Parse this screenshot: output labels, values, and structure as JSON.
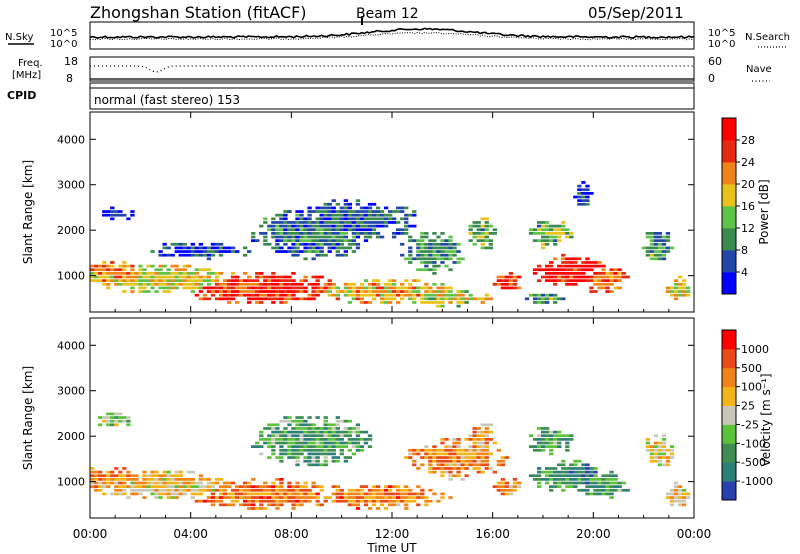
{
  "header": {
    "title": "Zhongshan Station (fitACF)",
    "beam": "Beam 12",
    "date": "05/Sep/2011",
    "cpid_label": "CPID",
    "cpid_text": "normal (fast stereo) 153"
  },
  "top_panels": {
    "nsky_label": "N.Sky",
    "nsearch_label": "N.Search",
    "noise_ticks_left": [
      "10^5",
      "10^0"
    ],
    "noise_ticks_right": [
      "10^5",
      "10^0"
    ],
    "freq_label_1": "Freq.",
    "freq_label_2": "[MHz]",
    "freq_ticks": [
      "18",
      "8"
    ],
    "nave_label": "Nave",
    "nave_ticks": [
      "60",
      "0"
    ]
  },
  "chart_data": [
    {
      "type": "heatmap",
      "name": "power",
      "ylabel": "Slant Range [km]",
      "yticks": [
        "4000",
        "3000",
        "2000",
        "1000"
      ],
      "ylim": [
        200,
        4600
      ],
      "xlim": [
        0,
        24
      ],
      "colorbar_label": "Power [dB]",
      "colorbar_ticks": [
        "28",
        "24",
        "20",
        "16",
        "12",
        "8",
        "4"
      ],
      "colors": [
        "#0000ff",
        "#2347a8",
        "#3a8a4e",
        "#5fc24a",
        "#e9c31c",
        "#f08418",
        "#e52a0f",
        "#ff0000"
      ],
      "blobs": [
        {
          "t": 0.6,
          "dt": 1.8,
          "r": 1050,
          "dr": 300,
          "i": 0.65
        },
        {
          "t": 1.0,
          "dt": 0.9,
          "r": 2350,
          "dr": 200,
          "i": 0.15
        },
        {
          "t": 3.0,
          "dt": 3.2,
          "r": 900,
          "dr": 350,
          "i": 0.55
        },
        {
          "t": 4.5,
          "dt": 2.2,
          "r": 1550,
          "dr": 220,
          "i": 0.15
        },
        {
          "t": 7.0,
          "dt": 3.5,
          "r": 700,
          "dr": 400,
          "i": 0.85
        },
        {
          "t": 8.8,
          "dt": 2.6,
          "r": 1900,
          "dr": 600,
          "i": 0.25
        },
        {
          "t": 10.5,
          "dt": 3.0,
          "r": 2200,
          "dr": 500,
          "i": 0.18
        },
        {
          "t": 11.5,
          "dt": 3.2,
          "r": 650,
          "dr": 300,
          "i": 0.6
        },
        {
          "t": 13.6,
          "dt": 1.4,
          "r": 1500,
          "dr": 500,
          "i": 0.3
        },
        {
          "t": 14.2,
          "dt": 2.0,
          "r": 500,
          "dr": 200,
          "i": 0.5
        },
        {
          "t": 15.6,
          "dt": 0.6,
          "r": 1900,
          "dr": 450,
          "i": 0.4
        },
        {
          "t": 16.6,
          "dt": 0.6,
          "r": 850,
          "dr": 250,
          "i": 0.8
        },
        {
          "t": 18.3,
          "dt": 1.0,
          "r": 1900,
          "dr": 350,
          "i": 0.4
        },
        {
          "t": 19.0,
          "dt": 1.6,
          "r": 1100,
          "dr": 400,
          "i": 0.9
        },
        {
          "t": 20.4,
          "dt": 1.1,
          "r": 900,
          "dr": 350,
          "i": 0.75
        },
        {
          "t": 19.6,
          "dt": 0.4,
          "r": 2800,
          "dr": 300,
          "i": 0.15
        },
        {
          "t": 22.6,
          "dt": 0.7,
          "r": 1650,
          "dr": 400,
          "i": 0.35
        },
        {
          "t": 23.4,
          "dt": 0.5,
          "r": 700,
          "dr": 300,
          "i": 0.55
        },
        {
          "t": 18.0,
          "dt": 0.9,
          "r": 500,
          "dr": 150,
          "i": 0.35
        }
      ]
    },
    {
      "type": "heatmap",
      "name": "velocity",
      "ylabel": "Slant Range [km]",
      "yticks": [
        "4000",
        "3000",
        "2000",
        "1000"
      ],
      "ylim": [
        200,
        4600
      ],
      "xlim": [
        0,
        24
      ],
      "colorbar_label": "Velocity [m s⁻¹]",
      "colorbar_ticks": [
        "1000",
        "500",
        "100",
        "25",
        "-25",
        "-100",
        "-500",
        "-1000"
      ],
      "colors": [
        "#2b3fb0",
        "#2e7f7a",
        "#3f8d52",
        "#5cc23a",
        "#c8c8b8",
        "#f3b418",
        "#f08418",
        "#e84a18",
        "#ff0000"
      ],
      "blobs": [
        {
          "t": 0.6,
          "dt": 1.8,
          "r": 1050,
          "dr": 300,
          "i": 0.7
        },
        {
          "t": 1.0,
          "dt": 0.9,
          "r": 2350,
          "dr": 200,
          "i": 0.45
        },
        {
          "t": 3.0,
          "dt": 3.2,
          "r": 900,
          "dr": 350,
          "i": 0.6
        },
        {
          "t": 7.0,
          "dt": 3.5,
          "r": 700,
          "dr": 400,
          "i": 0.75
        },
        {
          "t": 8.8,
          "dt": 2.6,
          "r": 1900,
          "dr": 600,
          "i": 0.3
        },
        {
          "t": 11.5,
          "dt": 3.2,
          "r": 650,
          "dr": 300,
          "i": 0.72
        },
        {
          "t": 14.6,
          "dt": 2.2,
          "r": 1500,
          "dr": 500,
          "i": 0.7
        },
        {
          "t": 15.6,
          "dt": 0.6,
          "r": 1900,
          "dr": 450,
          "i": 0.65
        },
        {
          "t": 16.6,
          "dt": 0.6,
          "r": 850,
          "dr": 250,
          "i": 0.68
        },
        {
          "t": 18.3,
          "dt": 1.0,
          "r": 1900,
          "dr": 350,
          "i": 0.3
        },
        {
          "t": 19.0,
          "dt": 1.6,
          "r": 1100,
          "dr": 400,
          "i": 0.25
        },
        {
          "t": 20.4,
          "dt": 1.1,
          "r": 900,
          "dr": 350,
          "i": 0.3
        },
        {
          "t": 22.6,
          "dt": 0.7,
          "r": 1650,
          "dr": 400,
          "i": 0.55
        },
        {
          "t": 23.4,
          "dt": 0.5,
          "r": 700,
          "dr": 300,
          "i": 0.6
        }
      ]
    }
  ],
  "time_axis": {
    "xlabel": "Time UT",
    "ticks": [
      "00:00",
      "04:00",
      "08:00",
      "12:00",
      "16:00",
      "20:00",
      "00:00"
    ]
  }
}
